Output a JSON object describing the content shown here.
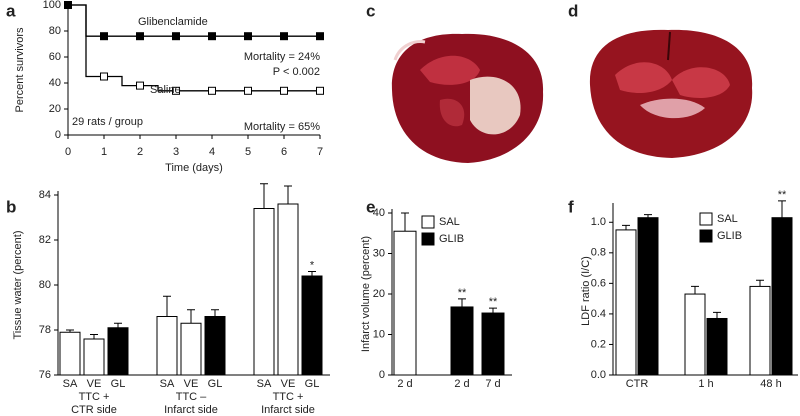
{
  "chart_data": [
    {
      "type": "line",
      "panel": "a",
      "ylabel": "Percent survivors",
      "xlabel": "Time (days)",
      "xlim": [
        0,
        7
      ],
      "xticks": [
        0,
        1,
        2,
        3,
        4,
        5,
        6,
        7
      ],
      "ylim": [
        0,
        100
      ],
      "yticks": [
        0,
        20,
        40,
        60,
        80,
        100
      ],
      "x": [
        0,
        1,
        2,
        3,
        4,
        5,
        6,
        7
      ],
      "series": [
        {
          "name": "Saline",
          "color": "#000000",
          "fill": "#ffffff",
          "values": [
            100,
            45,
            38,
            34,
            34,
            34,
            34,
            34
          ]
        },
        {
          "name": "Glibenclamide",
          "color": "#000000",
          "fill": "#000000",
          "values": [
            100,
            76,
            76,
            76,
            76,
            76,
            76,
            76
          ]
        }
      ],
      "annotations": [
        "Mortality = 24%",
        "P < 0.002",
        "Mortality = 65%",
        "29 rats / group"
      ]
    },
    {
      "type": "bar",
      "panel": "b",
      "ylabel": "Tissue water (percent)",
      "ylim": [
        76,
        84
      ],
      "yticks": [
        76,
        78,
        80,
        82,
        84
      ],
      "categories": [
        "SA",
        "VE",
        "GL",
        "SA",
        "VE",
        "GL",
        "SA",
        "VE",
        "GL"
      ],
      "values": [
        77.9,
        77.6,
        78.1,
        78.6,
        78.3,
        78.6,
        83.4,
        83.6,
        80.4
      ],
      "errors": [
        0.1,
        0.2,
        0.2,
        0.9,
        0.6,
        0.3,
        1.1,
        0.8,
        0.2
      ],
      "colors": [
        "#ffffff",
        "#ffffff",
        "#000000",
        "#ffffff",
        "#ffffff",
        "#000000",
        "#ffffff",
        "#ffffff",
        "#000000"
      ],
      "stars": [
        null,
        null,
        null,
        null,
        null,
        null,
        null,
        null,
        "*"
      ],
      "groups": [
        [
          "TTC +",
          "CTR side"
        ],
        [
          "TTC –",
          "Infarct side"
        ],
        [
          "TTC +",
          "Infarct side"
        ]
      ]
    },
    {
      "type": "groupbar",
      "panel": "e",
      "ylabel": "Infarct volume (percent)",
      "ylim": [
        0,
        40
      ],
      "yticks": [
        0,
        10,
        20,
        30,
        40
      ],
      "categories": [
        "2 d",
        "2 d",
        "7 d"
      ],
      "series": [
        {
          "name": "SAL",
          "color": "#ffffff",
          "values": [
            35.5,
            null,
            null
          ],
          "errors": [
            4.5,
            null,
            null
          ],
          "stars": [
            null,
            null,
            null
          ]
        },
        {
          "name": "GLIB",
          "color": "#000000",
          "values": [
            null,
            16.8,
            15.3
          ],
          "errors": [
            null,
            2.0,
            1.2
          ],
          "stars": [
            null,
            "**",
            "**"
          ]
        }
      ]
    },
    {
      "type": "groupbar",
      "panel": "f",
      "ylabel": "LDF ratio (I/C)",
      "ylim": [
        0,
        1.1
      ],
      "yticks": [
        {
          "value": 0,
          "label": "0.0"
        },
        0.2,
        0.4,
        0.6,
        0.8,
        {
          "value": 1,
          "label": "1.0"
        }
      ],
      "categories": [
        "CTR",
        "1 h",
        "48 h"
      ],
      "series": [
        {
          "name": "SAL",
          "color": "#ffffff",
          "values": [
            0.95,
            0.53,
            0.58
          ],
          "errors": [
            0.03,
            0.05,
            0.04
          ],
          "stars": [
            null,
            null,
            null
          ]
        },
        {
          "name": "GLIB",
          "color": "#000000",
          "values": [
            1.03,
            0.37,
            1.03
          ],
          "errors": [
            0.02,
            0.04,
            0.11
          ],
          "stars": [
            null,
            null,
            "**"
          ]
        }
      ]
    }
  ],
  "images": [
    {
      "label": "c"
    },
    {
      "label": "d"
    }
  ]
}
